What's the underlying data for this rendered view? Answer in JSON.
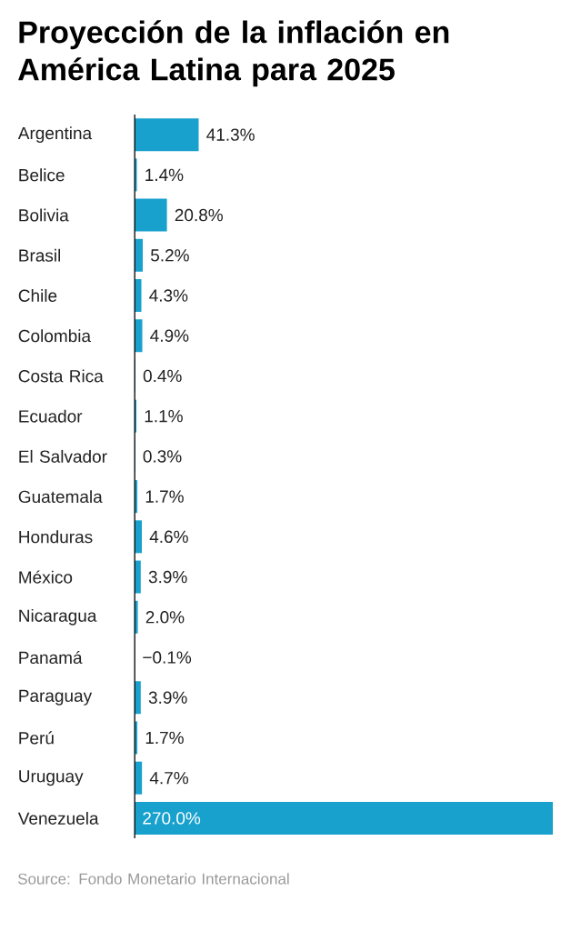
{
  "chart_data": {
    "type": "bar",
    "orientation": "horizontal",
    "title": "Proyección de la inflación en América Latina para 2025",
    "categories": [
      "Argentina",
      "Belice",
      "Bolivia",
      "Brasil",
      "Chile",
      "Colombia",
      "Costa Rica",
      "Ecuador",
      "El Salvador",
      "Guatemala",
      "Honduras",
      "México",
      "Nicaragua",
      "Panamá",
      "Paraguay",
      "Perú",
      "Uruguay",
      "Venezuela"
    ],
    "values": [
      41.3,
      1.4,
      20.8,
      5.2,
      4.3,
      4.9,
      0.4,
      1.1,
      0.3,
      1.7,
      4.6,
      3.9,
      2.0,
      -0.1,
      3.9,
      1.7,
      4.7,
      270.0
    ],
    "value_labels": [
      "41.3%",
      "1.4%",
      "20.8%",
      "5.2%",
      "4.3%",
      "4.9%",
      "0.4%",
      "1.1%",
      "0.3%",
      "1.7%",
      "4.6%",
      "3.9%",
      "2.0%",
      "−0.1%",
      "3.9%",
      "1.7%",
      "4.7%",
      "270.0%"
    ],
    "color": "#18a1cd",
    "annotations": [
      "Source: Fondo Monetario Internacional"
    ]
  }
}
